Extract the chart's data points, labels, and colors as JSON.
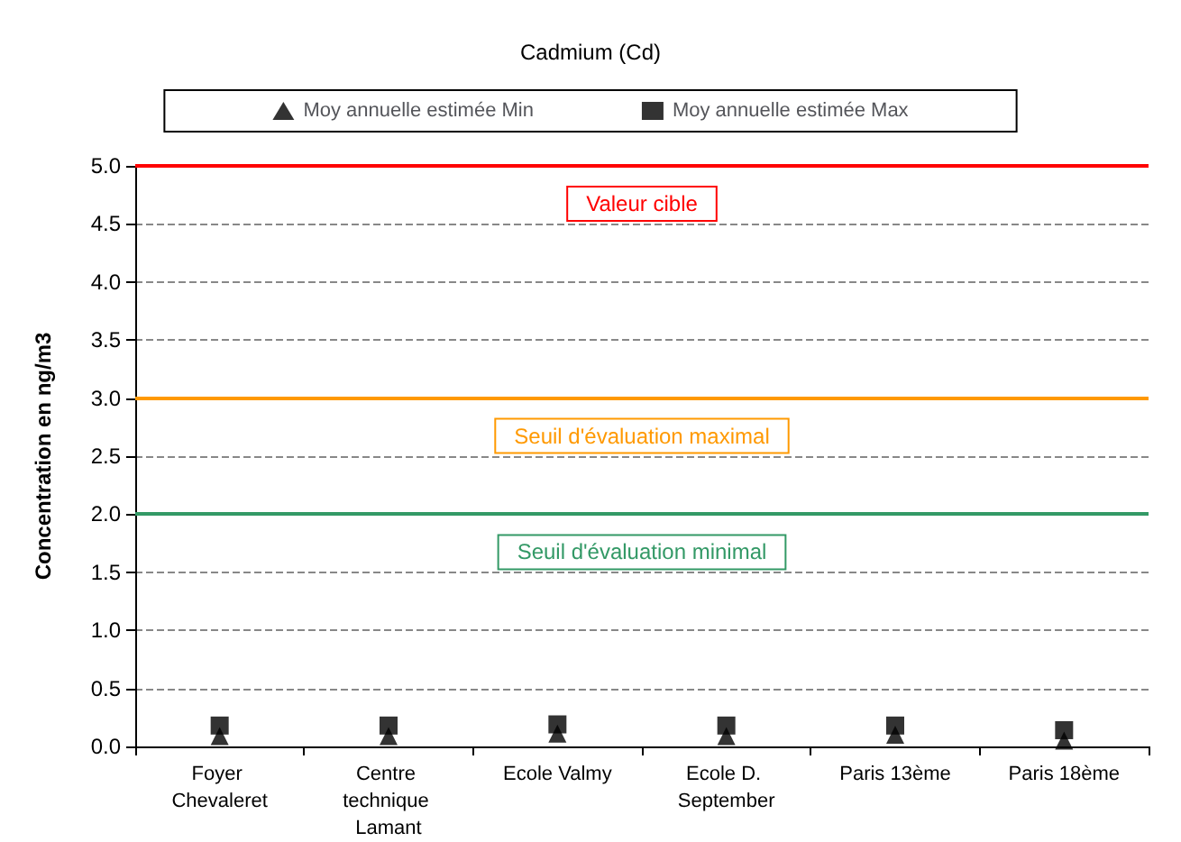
{
  "chart_data": {
    "type": "scatter",
    "title": "Cadmium (Cd)",
    "ylabel": "Concentration en ng/m3",
    "categories": [
      "Foyer Chevaleret",
      "Centre technique Lamant",
      "Ecole Valmy",
      "Ecole D. September",
      "Paris 13ème",
      "Paris 18ème"
    ],
    "series": [
      {
        "name": "Moy annuelle estimée Min",
        "color": "#000000",
        "marker": "triangle",
        "values": [
          0.09,
          0.09,
          0.11,
          0.09,
          0.1,
          0.05
        ]
      },
      {
        "name": "Moy annuelle estimée Max",
        "color": "#000000",
        "marker": "square",
        "values": [
          0.18,
          0.18,
          0.19,
          0.18,
          0.18,
          0.14
        ]
      }
    ],
    "ylim": [
      0,
      5
    ],
    "yticks": [
      {
        "value": 0,
        "label": "0.0"
      },
      {
        "value": 0.5,
        "label": "0.5"
      },
      {
        "value": 1,
        "label": "1.0"
      },
      {
        "value": 1.5,
        "label": "1.5"
      },
      {
        "value": 2,
        "label": "2.0"
      },
      {
        "value": 2.5,
        "label": "2.5"
      },
      {
        "value": 3,
        "label": "3.0"
      },
      {
        "value": 3.5,
        "label": "3.5"
      },
      {
        "value": 4,
        "label": "4.0"
      },
      {
        "value": 4.5,
        "label": "4.5"
      },
      {
        "value": 5,
        "label": "5.0"
      }
    ],
    "grid": "y",
    "legend": "top",
    "ref_lines": [
      {
        "axis": "y",
        "value": 5,
        "label": "Valeur cible",
        "color": "#ff0000"
      },
      {
        "axis": "y",
        "value": 3,
        "label": "Seuil d'évaluation maximal",
        "color": "#ff9900"
      },
      {
        "axis": "y",
        "value": 2,
        "label": "Seuil d'évaluation minimal",
        "color": "#339966"
      }
    ]
  }
}
